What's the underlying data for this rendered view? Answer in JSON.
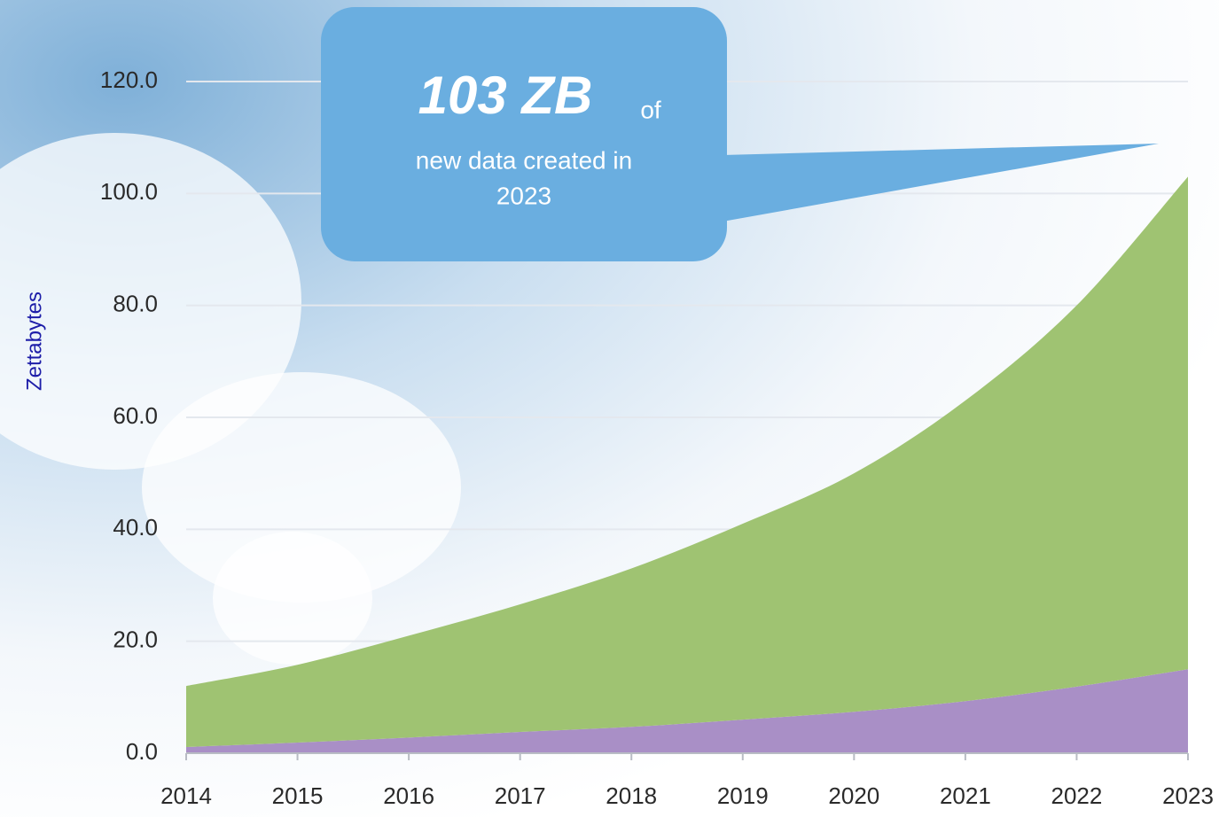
{
  "chart_data": {
    "type": "stacked_area",
    "y_label": "Zettabytes",
    "categories": [
      "2014",
      "2015",
      "2016",
      "2017",
      "2018",
      "2019",
      "2020",
      "2021",
      "2022",
      "2023"
    ],
    "series": [
      {
        "color": "#a98fc6",
        "values": [
          1.1,
          1.9,
          2.8,
          3.8,
          4.7,
          6.0,
          7.4,
          9.3,
          11.9,
          15.0
        ]
      },
      {
        "color": "#9fc372",
        "values": [
          10.9,
          13.9,
          18.2,
          22.8,
          28.3,
          35.0,
          42.6,
          53.7,
          68.1,
          88.0
        ]
      }
    ],
    "ylim": [
      0,
      120
    ],
    "yticks": [
      {
        "value": 0,
        "label": "0.0"
      },
      {
        "value": 20,
        "label": "20.0"
      },
      {
        "value": 40,
        "label": "40.0"
      },
      {
        "value": 60,
        "label": "60.0"
      },
      {
        "value": 80,
        "label": "80.0"
      },
      {
        "value": 100,
        "label": "100.0"
      },
      {
        "value": 120,
        "label": "120.0"
      }
    ],
    "grid": true,
    "annotation": {
      "headline": "103 ZB",
      "suffix": "of",
      "line1": "new data created in",
      "line2": "2023"
    }
  }
}
